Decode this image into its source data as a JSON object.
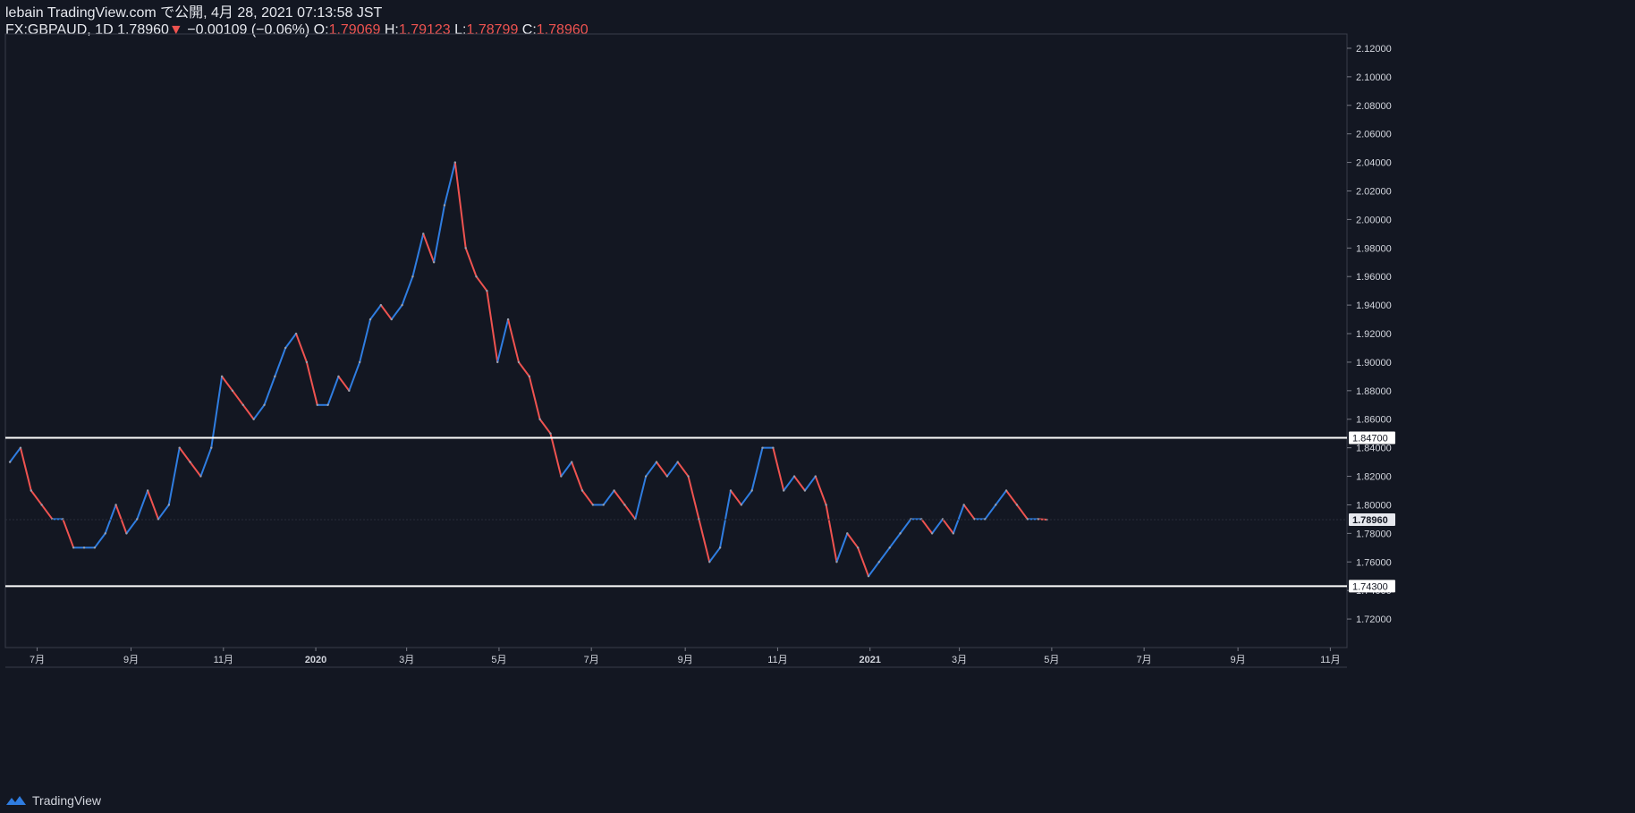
{
  "header": {
    "publisher": "lebain TradingView.com で公開, 4月 28, 2021 07:13:58 JST",
    "symbol": "FX:GBPAUD, 1D",
    "last": "1.78960",
    "change": "−0.00109 (−0.06%)",
    "o_label": "O:",
    "o_value": "1.79069",
    "h_label": "H:",
    "h_value": "1.79123",
    "l_label": "L:",
    "l_value": "1.78799",
    "c_label": "C:",
    "c_value": "1.78960"
  },
  "footer": {
    "brand": "TradingView",
    "logo_icon": "tradingview-logo-icon"
  },
  "colors": {
    "background": "#131722",
    "up": "#2f7de1",
    "down": "#ef5350",
    "axis_text": "#d1d4dc",
    "hline": "#ffffff"
  },
  "chart_data": {
    "type": "line",
    "title": "",
    "xlabel": "",
    "ylabel": "",
    "style": "candlestick",
    "ylim": [
      1.7,
      2.13
    ],
    "y_ticks": [
      "2.12000",
      "2.10000",
      "2.08000",
      "2.06000",
      "2.04000",
      "2.02000",
      "2.00000",
      "1.98000",
      "1.96000",
      "1.94000",
      "1.92000",
      "1.90000",
      "1.88000",
      "1.86000",
      "1.84000",
      "1.82000",
      "1.80000",
      "1.78000",
      "1.76000",
      "1.74000",
      "1.72000"
    ],
    "x_ticks": [
      {
        "label": "7月",
        "date": "2019-07-01"
      },
      {
        "label": "9月",
        "date": "2019-09-01"
      },
      {
        "label": "11月",
        "date": "2019-11-01"
      },
      {
        "label": "2020",
        "date": "2020-01-01"
      },
      {
        "label": "3月",
        "date": "2020-03-01"
      },
      {
        "label": "5月",
        "date": "2020-05-01"
      },
      {
        "label": "7月",
        "date": "2020-07-01"
      },
      {
        "label": "9月",
        "date": "2020-09-01"
      },
      {
        "label": "11月",
        "date": "2020-11-01"
      },
      {
        "label": "2021",
        "date": "2021-01-01"
      },
      {
        "label": "3月",
        "date": "2021-03-01"
      },
      {
        "label": "5月",
        "date": "2021-05-01"
      },
      {
        "label": "7月",
        "date": "2021-07-01"
      },
      {
        "label": "9月",
        "date": "2021-09-01"
      },
      {
        "label": "11月",
        "date": "2021-11-01"
      }
    ],
    "series": [
      {
        "values": [
          {
            "date": "2019-06-13",
            "value": 1.83
          },
          {
            "date": "2019-06-20",
            "value": 1.84
          },
          {
            "date": "2019-06-27",
            "value": 1.81
          },
          {
            "date": "2019-07-04",
            "value": 1.8
          },
          {
            "date": "2019-07-11",
            "value": 1.79
          },
          {
            "date": "2019-07-18",
            "value": 1.79
          },
          {
            "date": "2019-07-25",
            "value": 1.77
          },
          {
            "date": "2019-08-01",
            "value": 1.77
          },
          {
            "date": "2019-08-08",
            "value": 1.77
          },
          {
            "date": "2019-08-15",
            "value": 1.78
          },
          {
            "date": "2019-08-22",
            "value": 1.8
          },
          {
            "date": "2019-08-29",
            "value": 1.78
          },
          {
            "date": "2019-09-05",
            "value": 1.79
          },
          {
            "date": "2019-09-12",
            "value": 1.81
          },
          {
            "date": "2019-09-19",
            "value": 1.79
          },
          {
            "date": "2019-09-26",
            "value": 1.8
          },
          {
            "date": "2019-10-03",
            "value": 1.84
          },
          {
            "date": "2019-10-10",
            "value": 1.83
          },
          {
            "date": "2019-10-17",
            "value": 1.82
          },
          {
            "date": "2019-10-24",
            "value": 1.84
          },
          {
            "date": "2019-10-31",
            "value": 1.89
          },
          {
            "date": "2019-11-07",
            "value": 1.88
          },
          {
            "date": "2019-11-14",
            "value": 1.87
          },
          {
            "date": "2019-11-21",
            "value": 1.86
          },
          {
            "date": "2019-11-28",
            "value": 1.87
          },
          {
            "date": "2019-12-05",
            "value": 1.89
          },
          {
            "date": "2019-12-12",
            "value": 1.91
          },
          {
            "date": "2019-12-19",
            "value": 1.92
          },
          {
            "date": "2019-12-26",
            "value": 1.9
          },
          {
            "date": "2020-01-02",
            "value": 1.87
          },
          {
            "date": "2020-01-09",
            "value": 1.87
          },
          {
            "date": "2020-01-16",
            "value": 1.89
          },
          {
            "date": "2020-01-23",
            "value": 1.88
          },
          {
            "date": "2020-01-30",
            "value": 1.9
          },
          {
            "date": "2020-02-06",
            "value": 1.93
          },
          {
            "date": "2020-02-13",
            "value": 1.94
          },
          {
            "date": "2020-02-20",
            "value": 1.93
          },
          {
            "date": "2020-02-27",
            "value": 1.94
          },
          {
            "date": "2020-03-05",
            "value": 1.96
          },
          {
            "date": "2020-03-12",
            "value": 1.99
          },
          {
            "date": "2020-03-19",
            "value": 1.97
          },
          {
            "date": "2020-03-26",
            "value": 2.01
          },
          {
            "date": "2020-04-02",
            "value": 2.04
          },
          {
            "date": "2020-04-09",
            "value": 1.98
          },
          {
            "date": "2020-04-16",
            "value": 1.96
          },
          {
            "date": "2020-04-23",
            "value": 1.95
          },
          {
            "date": "2020-04-30",
            "value": 1.9
          },
          {
            "date": "2020-05-07",
            "value": 1.93
          },
          {
            "date": "2020-05-14",
            "value": 1.9
          },
          {
            "date": "2020-05-21",
            "value": 1.89
          },
          {
            "date": "2020-05-28",
            "value": 1.86
          },
          {
            "date": "2020-06-04",
            "value": 1.85
          },
          {
            "date": "2020-06-11",
            "value": 1.82
          },
          {
            "date": "2020-06-18",
            "value": 1.83
          },
          {
            "date": "2020-06-25",
            "value": 1.81
          },
          {
            "date": "2020-07-02",
            "value": 1.8
          },
          {
            "date": "2020-07-09",
            "value": 1.8
          },
          {
            "date": "2020-07-16",
            "value": 1.81
          },
          {
            "date": "2020-07-23",
            "value": 1.8
          },
          {
            "date": "2020-07-30",
            "value": 1.79
          },
          {
            "date": "2020-08-06",
            "value": 1.82
          },
          {
            "date": "2020-08-13",
            "value": 1.83
          },
          {
            "date": "2020-08-20",
            "value": 1.82
          },
          {
            "date": "2020-08-27",
            "value": 1.83
          },
          {
            "date": "2020-09-03",
            "value": 1.82
          },
          {
            "date": "2020-09-10",
            "value": 1.79
          },
          {
            "date": "2020-09-17",
            "value": 1.76
          },
          {
            "date": "2020-09-24",
            "value": 1.77
          },
          {
            "date": "2020-10-01",
            "value": 1.81
          },
          {
            "date": "2020-10-08",
            "value": 1.8
          },
          {
            "date": "2020-10-15",
            "value": 1.81
          },
          {
            "date": "2020-10-22",
            "value": 1.84
          },
          {
            "date": "2020-10-29",
            "value": 1.84
          },
          {
            "date": "2020-11-05",
            "value": 1.81
          },
          {
            "date": "2020-11-12",
            "value": 1.82
          },
          {
            "date": "2020-11-19",
            "value": 1.81
          },
          {
            "date": "2020-11-26",
            "value": 1.82
          },
          {
            "date": "2020-12-03",
            "value": 1.8
          },
          {
            "date": "2020-12-10",
            "value": 1.76
          },
          {
            "date": "2020-12-17",
            "value": 1.78
          },
          {
            "date": "2020-12-24",
            "value": 1.77
          },
          {
            "date": "2020-12-31",
            "value": 1.75
          },
          {
            "date": "2021-01-07",
            "value": 1.76
          },
          {
            "date": "2021-01-14",
            "value": 1.77
          },
          {
            "date": "2021-01-21",
            "value": 1.78
          },
          {
            "date": "2021-01-28",
            "value": 1.79
          },
          {
            "date": "2021-02-04",
            "value": 1.79
          },
          {
            "date": "2021-02-11",
            "value": 1.78
          },
          {
            "date": "2021-02-18",
            "value": 1.79
          },
          {
            "date": "2021-02-25",
            "value": 1.78
          },
          {
            "date": "2021-03-04",
            "value": 1.8
          },
          {
            "date": "2021-03-11",
            "value": 1.79
          },
          {
            "date": "2021-03-18",
            "value": 1.79
          },
          {
            "date": "2021-03-25",
            "value": 1.8
          },
          {
            "date": "2021-04-01",
            "value": 1.81
          },
          {
            "date": "2021-04-08",
            "value": 1.8
          },
          {
            "date": "2021-04-15",
            "value": 1.79
          },
          {
            "date": "2021-04-22",
            "value": 1.79
          },
          {
            "date": "2021-04-28",
            "value": 1.7896
          }
        ]
      }
    ],
    "hlines": [
      {
        "value": 1.847,
        "label": "1.84700"
      },
      {
        "value": 1.743,
        "label": "1.74300"
      }
    ],
    "last_price": {
      "value": 1.7896,
      "label": "1.78960"
    }
  }
}
